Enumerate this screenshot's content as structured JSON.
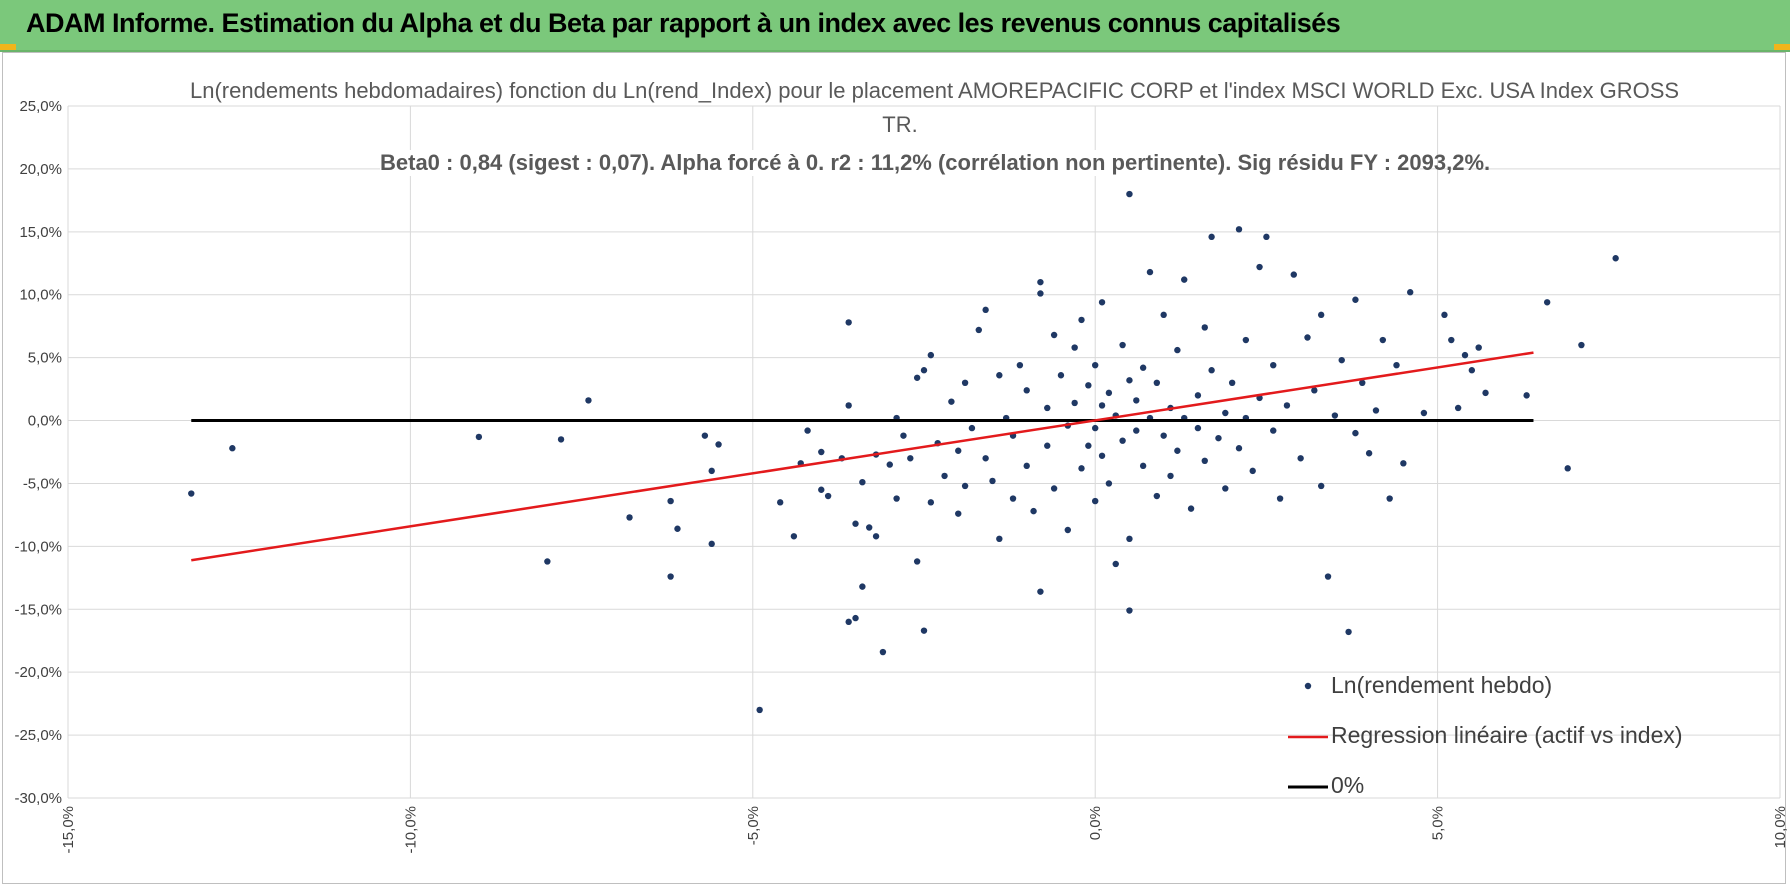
{
  "banner": {
    "title": "ADAM Informe. Estimation du Alpha et du Beta par rapport à un index avec les revenus connus capitalisés"
  },
  "colors": {
    "banner": "#7bc87b",
    "corner": "#f2b51b",
    "points": "#1f3864",
    "regression": "#e31a1c",
    "zero_line": "#000000",
    "grid": "#d9d9d9"
  },
  "chart_data": {
    "type": "scatter",
    "title_line1": "Ln(rendements hebdomadaires) fonction du Ln(rend_Index) pour le placement AMOREPACIFIC CORP et l'index MSCI WORLD Exc. USA Index GROSS",
    "title_line2": "TR.",
    "subtitle": "Beta0 : 0,84 (sigest : 0,07).  Alpha forcé à 0. r2 : 11,2% (corrélation non pertinente). Sig résidu FY : 2093,2%.",
    "xlim": [
      -0.15,
      0.1
    ],
    "ylim": [
      -0.3,
      0.25
    ],
    "x_ticks": [
      "-15,0%",
      "-10,0%",
      "-5,0%",
      "0,0%",
      "5,0%",
      "10,0%"
    ],
    "y_ticks": [
      "25,0%",
      "20,0%",
      "15,0%",
      "10,0%",
      "5,0%",
      "0,0%",
      "-5,0%",
      "-10,0%",
      "-15,0%",
      "-20,0%",
      "-25,0%",
      "-30,0%"
    ],
    "grid": true,
    "legend_position": "bottom-right",
    "series": [
      {
        "name": "Ln(rendement hebdo)",
        "kind": "scatter",
        "points": [
          [
            -0.132,
            -0.058
          ],
          [
            -0.126,
            -0.022
          ],
          [
            -0.09,
            -0.013
          ],
          [
            -0.078,
            -0.015
          ],
          [
            -0.074,
            0.016
          ],
          [
            -0.08,
            -0.112
          ],
          [
            -0.068,
            -0.077
          ],
          [
            -0.062,
            -0.064
          ],
          [
            -0.061,
            -0.086
          ],
          [
            -0.062,
            -0.124
          ],
          [
            -0.057,
            -0.012
          ],
          [
            -0.056,
            -0.04
          ],
          [
            -0.056,
            -0.098
          ],
          [
            -0.055,
            -0.019
          ],
          [
            -0.049,
            -0.23
          ],
          [
            -0.046,
            -0.065
          ],
          [
            -0.044,
            -0.092
          ],
          [
            -0.043,
            -0.034
          ],
          [
            -0.042,
            -0.008
          ],
          [
            -0.04,
            -0.055
          ],
          [
            -0.04,
            -0.025
          ],
          [
            -0.039,
            -0.06
          ],
          [
            -0.037,
            -0.03
          ],
          [
            -0.036,
            0.012
          ],
          [
            -0.036,
            -0.16
          ],
          [
            -0.035,
            -0.157
          ],
          [
            -0.036,
            0.078
          ],
          [
            -0.035,
            -0.082
          ],
          [
            -0.034,
            -0.132
          ],
          [
            -0.034,
            -0.049
          ],
          [
            -0.033,
            -0.085
          ],
          [
            -0.032,
            -0.027
          ],
          [
            -0.032,
            -0.092
          ],
          [
            -0.031,
            -0.184
          ],
          [
            -0.03,
            -0.035
          ],
          [
            -0.029,
            0.002
          ],
          [
            -0.029,
            -0.062
          ],
          [
            -0.028,
            -0.012
          ],
          [
            -0.027,
            -0.03
          ],
          [
            -0.026,
            0.034
          ],
          [
            -0.026,
            -0.112
          ],
          [
            -0.025,
            -0.167
          ],
          [
            -0.025,
            0.04
          ],
          [
            -0.024,
            0.052
          ],
          [
            -0.024,
            -0.065
          ],
          [
            -0.023,
            -0.018
          ],
          [
            -0.022,
            -0.044
          ],
          [
            -0.021,
            0.015
          ],
          [
            -0.02,
            -0.024
          ],
          [
            -0.02,
            -0.074
          ],
          [
            -0.019,
            0.03
          ],
          [
            -0.019,
            -0.052
          ],
          [
            -0.018,
            -0.006
          ],
          [
            -0.017,
            0.072
          ],
          [
            -0.016,
            0.088
          ],
          [
            -0.016,
            -0.03
          ],
          [
            -0.015,
            -0.048
          ],
          [
            -0.014,
            0.036
          ],
          [
            -0.014,
            -0.094
          ],
          [
            -0.013,
            0.002
          ],
          [
            -0.012,
            -0.062
          ],
          [
            -0.012,
            -0.012
          ],
          [
            -0.011,
            0.044
          ],
          [
            -0.01,
            0.024
          ],
          [
            -0.01,
            -0.036
          ],
          [
            -0.009,
            -0.072
          ],
          [
            -0.008,
            0.101
          ],
          [
            -0.008,
            0.11
          ],
          [
            -0.008,
            -0.136
          ],
          [
            -0.007,
            0.01
          ],
          [
            -0.007,
            -0.02
          ],
          [
            -0.006,
            0.068
          ],
          [
            -0.006,
            -0.054
          ],
          [
            -0.005,
            0.036
          ],
          [
            -0.004,
            -0.004
          ],
          [
            -0.004,
            -0.087
          ],
          [
            -0.003,
            0.014
          ],
          [
            -0.003,
            0.058
          ],
          [
            -0.002,
            -0.038
          ],
          [
            -0.002,
            0.08
          ],
          [
            -0.001,
            -0.02
          ],
          [
            -0.001,
            0.028
          ],
          [
            0.0,
            -0.006
          ],
          [
            0.0,
            0.044
          ],
          [
            0.0,
            -0.064
          ],
          [
            0.001,
            0.012
          ],
          [
            0.001,
            -0.028
          ],
          [
            0.001,
            0.094
          ],
          [
            0.002,
            -0.05
          ],
          [
            0.002,
            0.022
          ],
          [
            0.003,
            0.004
          ],
          [
            0.003,
            -0.114
          ],
          [
            0.004,
            0.06
          ],
          [
            0.004,
            -0.016
          ],
          [
            0.005,
            0.18
          ],
          [
            0.005,
            0.032
          ],
          [
            0.005,
            -0.094
          ],
          [
            0.005,
            -0.151
          ],
          [
            0.006,
            -0.008
          ],
          [
            0.006,
            0.016
          ],
          [
            0.007,
            0.042
          ],
          [
            0.007,
            -0.036
          ],
          [
            0.008,
            0.118
          ],
          [
            0.008,
            0.002
          ],
          [
            0.009,
            -0.06
          ],
          [
            0.009,
            0.03
          ],
          [
            0.01,
            0.084
          ],
          [
            0.01,
            -0.012
          ],
          [
            0.011,
            0.01
          ],
          [
            0.011,
            -0.044
          ],
          [
            0.012,
            0.056
          ],
          [
            0.012,
            -0.024
          ],
          [
            0.013,
            0.002
          ],
          [
            0.013,
            0.112
          ],
          [
            0.014,
            -0.07
          ],
          [
            0.015,
            0.02
          ],
          [
            0.015,
            -0.006
          ],
          [
            0.016,
            0.074
          ],
          [
            0.016,
            -0.032
          ],
          [
            0.017,
            0.146
          ],
          [
            0.017,
            0.04
          ],
          [
            0.018,
            -0.014
          ],
          [
            0.019,
            0.006
          ],
          [
            0.019,
            -0.054
          ],
          [
            0.02,
            0.03
          ],
          [
            0.021,
            0.152
          ],
          [
            0.021,
            -0.022
          ],
          [
            0.022,
            0.064
          ],
          [
            0.022,
            0.002
          ],
          [
            0.023,
            -0.04
          ],
          [
            0.024,
            0.122
          ],
          [
            0.024,
            0.018
          ],
          [
            0.025,
            0.146
          ],
          [
            0.026,
            -0.008
          ],
          [
            0.026,
            0.044
          ],
          [
            0.027,
            -0.062
          ],
          [
            0.028,
            0.012
          ],
          [
            0.029,
            0.116
          ],
          [
            0.03,
            -0.03
          ],
          [
            0.031,
            0.066
          ],
          [
            0.032,
            0.024
          ],
          [
            0.033,
            -0.052
          ],
          [
            0.033,
            0.084
          ],
          [
            0.034,
            -0.124
          ],
          [
            0.035,
            0.004
          ],
          [
            0.036,
            0.048
          ],
          [
            0.037,
            -0.168
          ],
          [
            0.038,
            0.096
          ],
          [
            0.038,
            -0.01
          ],
          [
            0.039,
            0.03
          ],
          [
            0.04,
            -0.026
          ],
          [
            0.041,
            0.008
          ],
          [
            0.042,
            0.064
          ],
          [
            0.043,
            -0.062
          ],
          [
            0.044,
            0.044
          ],
          [
            0.045,
            -0.034
          ],
          [
            0.046,
            0.102
          ],
          [
            0.048,
            0.006
          ],
          [
            0.051,
            0.084
          ],
          [
            0.052,
            0.064
          ],
          [
            0.053,
            0.01
          ],
          [
            0.054,
            0.052
          ],
          [
            0.055,
            0.04
          ],
          [
            0.056,
            0.058
          ],
          [
            0.057,
            0.022
          ],
          [
            0.063,
            0.02
          ],
          [
            0.066,
            0.094
          ],
          [
            0.069,
            -0.038
          ],
          [
            0.071,
            0.06
          ],
          [
            0.076,
            0.129
          ]
        ]
      },
      {
        "name": "Regression linéaire (actif vs index)",
        "kind": "line",
        "points": [
          [
            -0.132,
            -0.111
          ],
          [
            0.064,
            0.054
          ]
        ]
      },
      {
        "name": "0%",
        "kind": "line",
        "points": [
          [
            -0.132,
            0.0
          ],
          [
            0.064,
            0.0
          ]
        ]
      }
    ]
  }
}
